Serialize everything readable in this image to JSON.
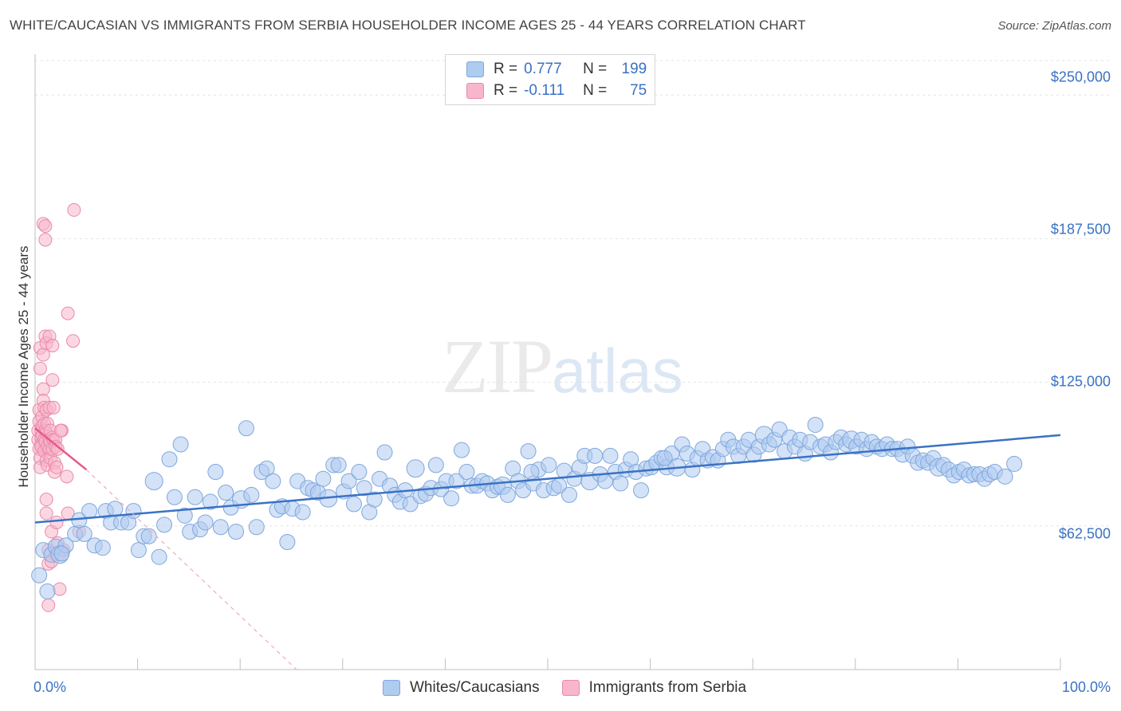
{
  "header": {
    "title": "WHITE/CAUCASIAN VS IMMIGRANTS FROM SERBIA HOUSEHOLDER INCOME AGES 25 - 44 YEARS CORRELATION CHART",
    "source": "Source: ZipAtlas.com"
  },
  "watermark": {
    "zip": "ZIP",
    "atlas": "atlas"
  },
  "colors": {
    "blue": "#3a72c4",
    "blue_fill": "#aecbf0",
    "pink": "#e8578a",
    "pink_fill": "#f7b6cb"
  },
  "legend": {
    "r_label": "R =",
    "n_label": "N =",
    "rows": [
      {
        "r": "0.777",
        "n": "199"
      },
      {
        "r": "-0.111",
        "n": "75"
      }
    ]
  },
  "chart_data": {
    "type": "scatter",
    "title": "WHITE/CAUCASIAN VS IMMIGRANTS FROM SERBIA HOUSEHOLDER INCOME AGES 25 - 44 YEARS CORRELATION CHART",
    "xlabel": "",
    "ylabel": "Householder Income Ages 25 - 44 years",
    "xlim": [
      0,
      100
    ],
    "ylim": [
      0,
      265000
    ],
    "x_tick_labels": [
      "0.0%",
      "100.0%"
    ],
    "y_ticks": [
      62500,
      125000,
      187500,
      250000
    ],
    "y_tick_labels": [
      "$62,500",
      "$125,000",
      "$187,500",
      "$250,000"
    ],
    "legend": [
      "Whites/Caucasians",
      "Immigrants from Serbia"
    ],
    "series": [
      {
        "name": "Whites/Caucasians",
        "r": 0.777,
        "n": 199,
        "trend": {
          "x": [
            0,
            100
          ],
          "y": [
            64000,
            102000
          ]
        },
        "points": [
          [
            0.4,
            41000
          ],
          [
            0.8,
            52000
          ],
          [
            1.2,
            34000
          ],
          [
            1.6,
            50000
          ],
          [
            2.0,
            53500
          ],
          [
            2.4,
            50000
          ],
          [
            3.0,
            54000
          ],
          [
            3.9,
            59000
          ],
          [
            4.3,
            65000
          ],
          [
            4.8,
            59000
          ],
          [
            5.3,
            69000
          ],
          [
            5.8,
            54000
          ],
          [
            6.6,
            53000
          ],
          [
            6.9,
            69000
          ],
          [
            7.4,
            64000
          ],
          [
            7.8,
            70000
          ],
          [
            8.4,
            64000
          ],
          [
            9.1,
            64000
          ],
          [
            9.6,
            69000
          ],
          [
            10.1,
            52000
          ],
          [
            10.6,
            58000
          ],
          [
            11.1,
            58000
          ],
          [
            11.6,
            82000
          ],
          [
            12.1,
            49000
          ],
          [
            12.6,
            63000
          ],
          [
            13.1,
            91500
          ],
          [
            13.6,
            75000
          ],
          [
            14.2,
            98000
          ],
          [
            14.6,
            67000
          ],
          [
            15.1,
            60000
          ],
          [
            15.6,
            75000
          ],
          [
            16.1,
            61000
          ],
          [
            16.6,
            64000
          ],
          [
            17.1,
            73000
          ],
          [
            17.6,
            86000
          ],
          [
            18.1,
            62000
          ],
          [
            18.6,
            77000
          ],
          [
            19.1,
            70500
          ],
          [
            19.6,
            60000
          ],
          [
            20.1,
            74000
          ],
          [
            20.6,
            105000
          ],
          [
            21.1,
            76000
          ],
          [
            21.6,
            62000
          ],
          [
            22.1,
            86000
          ],
          [
            22.6,
            87500
          ],
          [
            23.2,
            82000
          ],
          [
            23.6,
            69500
          ],
          [
            24.1,
            71000
          ],
          [
            24.6,
            55500
          ],
          [
            25.1,
            70000
          ],
          [
            25.6,
            82000
          ],
          [
            26.1,
            68500
          ],
          [
            26.6,
            79000
          ],
          [
            27.1,
            78000
          ],
          [
            27.6,
            77000
          ],
          [
            28.1,
            83000
          ],
          [
            28.6,
            74500
          ],
          [
            29.1,
            89000
          ],
          [
            29.6,
            89000
          ],
          [
            30.1,
            77500
          ],
          [
            30.6,
            82000
          ],
          [
            31.1,
            72000
          ],
          [
            31.6,
            86000
          ],
          [
            32.1,
            79000
          ],
          [
            32.6,
            68500
          ],
          [
            33.1,
            74000
          ],
          [
            33.6,
            83000
          ],
          [
            34.1,
            94500
          ],
          [
            34.6,
            80000
          ],
          [
            35.1,
            76000
          ],
          [
            35.6,
            73000
          ],
          [
            36.1,
            78000
          ],
          [
            36.6,
            72000
          ],
          [
            37.1,
            87500
          ],
          [
            37.6,
            75500
          ],
          [
            38.1,
            76500
          ],
          [
            38.6,
            79000
          ],
          [
            39.1,
            89000
          ],
          [
            39.6,
            78500
          ],
          [
            40.1,
            82000
          ],
          [
            40.6,
            74500
          ],
          [
            41.1,
            82000
          ],
          [
            41.6,
            95500
          ],
          [
            42.1,
            86000
          ],
          [
            42.6,
            80000
          ],
          [
            43.1,
            80000
          ],
          [
            43.6,
            82000
          ],
          [
            44.1,
            81000
          ],
          [
            44.6,
            78000
          ],
          [
            45.1,
            79500
          ],
          [
            45.6,
            80000
          ],
          [
            46.1,
            76000
          ],
          [
            46.6,
            87500
          ],
          [
            47.1,
            82000
          ],
          [
            47.6,
            78000
          ],
          [
            48.1,
            95000
          ],
          [
            48.6,
            81000
          ],
          [
            49.1,
            87000
          ],
          [
            49.6,
            78000
          ],
          [
            50.1,
            89000
          ],
          [
            50.6,
            79000
          ],
          [
            51.1,
            80000
          ],
          [
            51.6,
            86500
          ],
          [
            52.1,
            76000
          ],
          [
            52.6,
            83000
          ],
          [
            53.1,
            88000
          ],
          [
            53.6,
            93000
          ],
          [
            54.1,
            82000
          ],
          [
            54.6,
            93000
          ],
          [
            55.1,
            85000
          ],
          [
            55.6,
            82000
          ],
          [
            56.1,
            93000
          ],
          [
            56.6,
            86000
          ],
          [
            57.1,
            81000
          ],
          [
            57.6,
            87000
          ],
          [
            58.1,
            91500
          ],
          [
            58.6,
            86000
          ],
          [
            59.1,
            78000
          ],
          [
            59.6,
            87500
          ],
          [
            60.1,
            88000
          ],
          [
            60.6,
            90000
          ],
          [
            61.1,
            92000
          ],
          [
            61.6,
            88000
          ],
          [
            62.1,
            94000
          ],
          [
            62.6,
            88000
          ],
          [
            63.1,
            98000
          ],
          [
            63.6,
            94000
          ],
          [
            64.1,
            87000
          ],
          [
            64.6,
            92000
          ],
          [
            65.1,
            96000
          ],
          [
            65.6,
            91000
          ],
          [
            66.1,
            92500
          ],
          [
            66.6,
            91000
          ],
          [
            67.1,
            96000
          ],
          [
            67.6,
            100000
          ],
          [
            68.1,
            97000
          ],
          [
            68.6,
            93000
          ],
          [
            69.1,
            97000
          ],
          [
            69.6,
            100000
          ],
          [
            70.1,
            93500
          ],
          [
            70.6,
            97000
          ],
          [
            71.1,
            102000
          ],
          [
            71.6,
            98000
          ],
          [
            72.1,
            100000
          ],
          [
            72.6,
            104500
          ],
          [
            73.1,
            95000
          ],
          [
            73.6,
            101000
          ],
          [
            74.1,
            97000
          ],
          [
            74.6,
            100000
          ],
          [
            75.1,
            94000
          ],
          [
            75.6,
            99000
          ],
          [
            76.1,
            106500
          ],
          [
            76.6,
            97000
          ],
          [
            77.1,
            98000
          ],
          [
            77.6,
            94500
          ],
          [
            78.1,
            99000
          ],
          [
            78.6,
            101000
          ],
          [
            79.1,
            98000
          ],
          [
            79.6,
            100000
          ],
          [
            80.1,
            97000
          ],
          [
            80.6,
            100000
          ],
          [
            81.1,
            96000
          ],
          [
            81.6,
            99000
          ],
          [
            82.1,
            97000
          ],
          [
            82.6,
            96000
          ],
          [
            83.1,
            98000
          ],
          [
            83.6,
            96000
          ],
          [
            84.1,
            96000
          ],
          [
            84.6,
            93500
          ],
          [
            85.1,
            97000
          ],
          [
            85.6,
            93000
          ],
          [
            86.1,
            90000
          ],
          [
            86.6,
            91000
          ],
          [
            87.1,
            90000
          ],
          [
            87.6,
            92000
          ],
          [
            88.1,
            88000
          ],
          [
            88.6,
            89000
          ],
          [
            89.1,
            87000
          ],
          [
            89.6,
            84500
          ],
          [
            90.1,
            86000
          ],
          [
            90.6,
            87000
          ],
          [
            91.1,
            84500
          ],
          [
            91.6,
            85000
          ],
          [
            92.1,
            85000
          ],
          [
            92.6,
            83000
          ],
          [
            93.1,
            85000
          ],
          [
            93.6,
            86000
          ],
          [
            94.6,
            84000
          ],
          [
            95.5,
            89500
          ],
          [
            2.6,
            50500
          ],
          [
            48.4,
            86000
          ],
          [
            61.4,
            92000
          ]
        ]
      },
      {
        "name": "Immigrants from Serbia",
        "r": -0.111,
        "n": 75,
        "trend": {
          "x": [
            0,
            5
          ],
          "y": [
            105000,
            87000
          ],
          "dashed_extension": {
            "x": [
              5,
              25.5
            ],
            "y": [
              87000,
              0
            ]
          }
        },
        "points": [
          [
            0.3,
            100000
          ],
          [
            0.3,
            104000
          ],
          [
            0.4,
            108000
          ],
          [
            0.4,
            96000
          ],
          [
            0.4,
            113000
          ],
          [
            0.5,
            140000
          ],
          [
            0.5,
            131000
          ],
          [
            0.5,
            92000
          ],
          [
            0.5,
            88000
          ],
          [
            0.6,
            104000
          ],
          [
            0.6,
            101000
          ],
          [
            0.6,
            98000
          ],
          [
            0.6,
            97000
          ],
          [
            0.7,
            110000
          ],
          [
            0.7,
            106000
          ],
          [
            0.7,
            102000
          ],
          [
            0.8,
            194000
          ],
          [
            0.8,
            137000
          ],
          [
            0.8,
            122000
          ],
          [
            0.8,
            117000
          ],
          [
            0.9,
            114000
          ],
          [
            0.9,
            107000
          ],
          [
            0.9,
            100000
          ],
          [
            0.9,
            95000
          ],
          [
            1.0,
            193000
          ],
          [
            1.0,
            187000
          ],
          [
            1.0,
            145000
          ],
          [
            1.0,
            104000
          ],
          [
            1.0,
            99000
          ],
          [
            1.1,
            142000
          ],
          [
            1.1,
            113000
          ],
          [
            1.1,
            103000
          ],
          [
            1.1,
            91000
          ],
          [
            1.1,
            74000
          ],
          [
            1.1,
            68000
          ],
          [
            1.2,
            107000
          ],
          [
            1.2,
            97000
          ],
          [
            1.2,
            89000
          ],
          [
            1.3,
            52000
          ],
          [
            1.3,
            46000
          ],
          [
            1.3,
            28000
          ],
          [
            1.4,
            145000
          ],
          [
            1.4,
            114000
          ],
          [
            1.4,
            100000
          ],
          [
            1.4,
            96000
          ],
          [
            1.5,
            104000
          ],
          [
            1.5,
            99000
          ],
          [
            1.5,
            92000
          ],
          [
            1.6,
            60000
          ],
          [
            1.6,
            47000
          ],
          [
            1.7,
            141000
          ],
          [
            1.7,
            126000
          ],
          [
            1.7,
            101000
          ],
          [
            1.7,
            96000
          ],
          [
            1.8,
            114000
          ],
          [
            1.8,
            100000
          ],
          [
            1.9,
            90000
          ],
          [
            1.9,
            86000
          ],
          [
            2.0,
            100000
          ],
          [
            2.0,
            97000
          ],
          [
            2.1,
            88000
          ],
          [
            2.1,
            64000
          ],
          [
            2.2,
            96000
          ],
          [
            2.2,
            55000
          ],
          [
            2.3,
            50000
          ],
          [
            2.4,
            35000
          ],
          [
            2.6,
            104000
          ],
          [
            2.8,
            52000
          ],
          [
            3.1,
            84000
          ],
          [
            3.2,
            68000
          ],
          [
            3.2,
            155000
          ],
          [
            3.7,
            143000
          ],
          [
            3.8,
            200000
          ],
          [
            4.3,
            60000
          ],
          [
            2.5,
            104000
          ]
        ]
      }
    ]
  }
}
